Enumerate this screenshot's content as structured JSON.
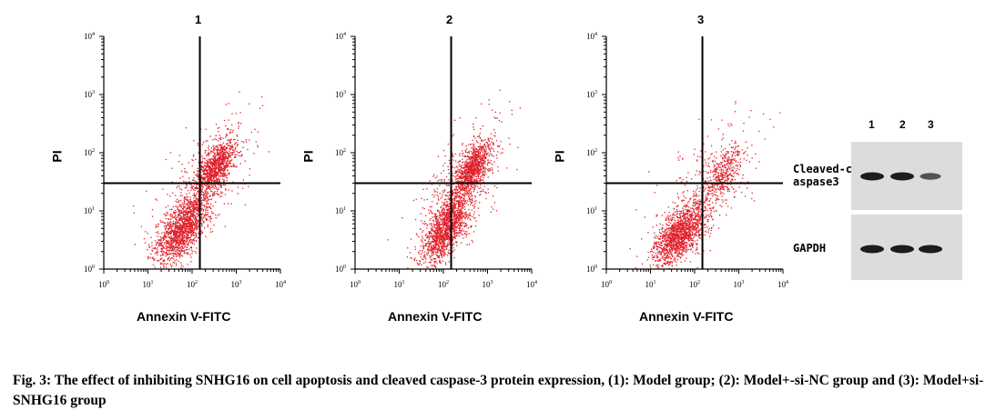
{
  "figure": {
    "caption": "Fig. 3: The effect of inhibiting SNHG16 on cell apoptosis and cleaved caspase-3 protein expression, (1): Model group; (2): Model+-si-NC group and (3): Model+si-SNHG16 group"
  },
  "chart_data": [
    {
      "type": "scatter",
      "title": "1",
      "xlabel": "Annexin V-FITC",
      "ylabel": "PI",
      "x_scale": "log",
      "y_scale": "log",
      "xlim": [
        1,
        10000
      ],
      "ylim": [
        1,
        10000
      ],
      "x_tick_labels": [
        "10^0",
        "10^1",
        "10^2",
        "10^3",
        "10^4"
      ],
      "y_tick_labels": [
        "10^0",
        "10^1",
        "10^2",
        "10^3",
        "10^4"
      ],
      "gates": {
        "x": 150,
        "y": 30
      },
      "color": "#e0202a",
      "clusters": [
        {
          "center": [
            60,
            5
          ],
          "spread": [
            0.28,
            0.28
          ],
          "n": 1400
        },
        {
          "center": [
            350,
            60
          ],
          "spread": [
            0.2,
            0.22
          ],
          "n": 900
        },
        {
          "center": [
            150,
            25
          ],
          "spread": [
            0.5,
            0.55
          ],
          "n": 500
        }
      ]
    },
    {
      "type": "scatter",
      "title": "2",
      "xlabel": "Annexin V-FITC",
      "ylabel": "PI",
      "x_scale": "log",
      "y_scale": "log",
      "xlim": [
        1,
        10000
      ],
      "ylim": [
        1,
        10000
      ],
      "x_tick_labels": [
        "10^0",
        "10^1",
        "10^2",
        "10^3",
        "10^4"
      ],
      "y_tick_labels": [
        "10^0",
        "10^1",
        "10^2",
        "10^3",
        "10^4"
      ],
      "gates": {
        "x": 150,
        "y": 30
      },
      "color": "#e0202a",
      "clusters": [
        {
          "center": [
            110,
            5
          ],
          "spread": [
            0.25,
            0.28
          ],
          "n": 1300
        },
        {
          "center": [
            450,
            55
          ],
          "spread": [
            0.18,
            0.22
          ],
          "n": 900
        },
        {
          "center": [
            250,
            25
          ],
          "spread": [
            0.45,
            0.55
          ],
          "n": 500
        }
      ]
    },
    {
      "type": "scatter",
      "title": "3",
      "xlabel": "Annexin V-FITC",
      "ylabel": "PI",
      "x_scale": "log",
      "y_scale": "log",
      "xlim": [
        1,
        10000
      ],
      "ylim": [
        1,
        10000
      ],
      "x_tick_labels": [
        "10^0",
        "10^1",
        "10^2",
        "10^3",
        "10^4"
      ],
      "y_tick_labels": [
        "10^0",
        "10^1",
        "10^2",
        "10^3",
        "10^4"
      ],
      "gates": {
        "x": 150,
        "y": 30
      },
      "color": "#e0202a",
      "clusters": [
        {
          "center": [
            45,
            4
          ],
          "spread": [
            0.28,
            0.25
          ],
          "n": 1400
        },
        {
          "center": [
            450,
            45
          ],
          "spread": [
            0.2,
            0.22
          ],
          "n": 350
        },
        {
          "center": [
            150,
            20
          ],
          "spread": [
            0.55,
            0.6
          ],
          "n": 350
        }
      ]
    }
  ],
  "western_blot": {
    "lanes": [
      "1",
      "2",
      "3"
    ],
    "targets": [
      {
        "label_line1": "Cleaved-c",
        "label_line2": "aspase3",
        "intensities": [
          1.0,
          1.0,
          0.55
        ]
      },
      {
        "label_line1": "GAPDH",
        "label_line2": "",
        "intensities": [
          1.0,
          1.0,
          1.0
        ]
      }
    ]
  }
}
